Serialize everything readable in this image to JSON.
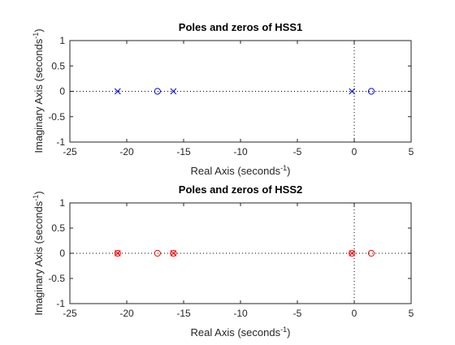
{
  "chart_data": [
    {
      "type": "scatter",
      "title": "Poles and zeros of HSS1",
      "xlabel": "Real Axis (seconds",
      "ylabel": "Imaginary Axis (seconds",
      "unit_exponent": "-1",
      "xlim": [
        -25,
        5
      ],
      "ylim": [
        -1,
        1
      ],
      "xticks": [
        "-25",
        "-20",
        "-15",
        "-10",
        "-5",
        "0",
        "5"
      ],
      "yticks": [
        "-1",
        "-0.5",
        "0",
        "0.5",
        "1"
      ],
      "grid": false,
      "reference_lines": "dotted lines at x = 0 and y = 0",
      "color": "#0000ff",
      "series": [
        {
          "marker": "x",
          "points": [
            [
              -20.8,
              0
            ],
            [
              -15.9,
              0
            ],
            [
              -0.2,
              0
            ]
          ]
        },
        {
          "marker": "o",
          "points": [
            [
              -17.3,
              0
            ],
            [
              1.5,
              0
            ]
          ]
        }
      ]
    },
    {
      "type": "scatter",
      "title": "Poles and zeros of HSS2",
      "xlabel": "Real Axis (seconds",
      "ylabel": "Imaginary Axis (seconds",
      "unit_exponent": "-1",
      "xlim": [
        -25,
        5
      ],
      "ylim": [
        -1,
        1
      ],
      "xticks": [
        "-25",
        "-20",
        "-15",
        "-10",
        "-5",
        "0",
        "5"
      ],
      "yticks": [
        "-1",
        "-0.5",
        "0",
        "0.5",
        "1"
      ],
      "grid": false,
      "reference_lines": "dotted lines at x = 0 and y = 0",
      "color": "#ff0000",
      "series": [
        {
          "marker": "x",
          "points": [
            [
              -20.8,
              0
            ],
            [
              -15.9,
              0
            ],
            [
              -0.2,
              0
            ]
          ]
        },
        {
          "marker": "o",
          "points": [
            [
              -20.8,
              0
            ],
            [
              -17.3,
              0
            ],
            [
              -15.9,
              0
            ],
            [
              -0.2,
              0
            ],
            [
              1.5,
              0
            ]
          ]
        }
      ]
    }
  ]
}
